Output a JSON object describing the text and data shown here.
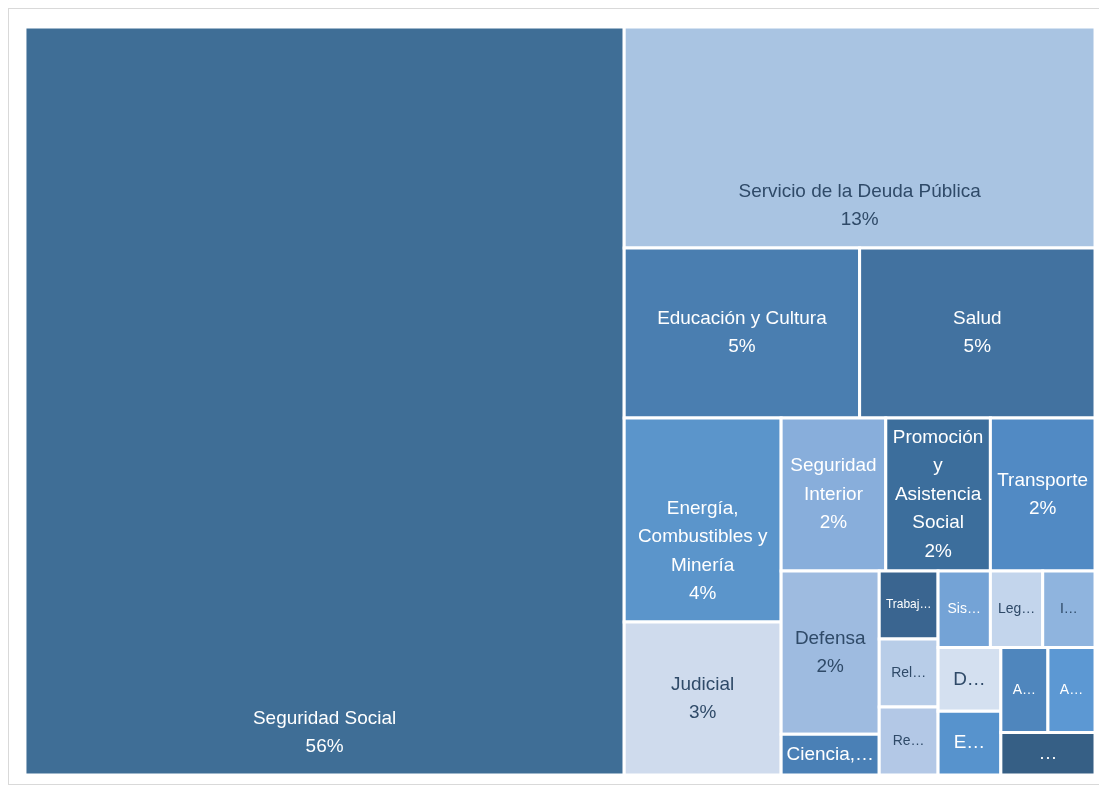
{
  "chart_data": {
    "type": "other",
    "categories": [
      "Seguridad Social",
      "Servicio de la Deuda Pública",
      "Educación y Cultura",
      "Salud",
      "Energía, Combustibles y Minería",
      "Judicial",
      "Seguridad Interior",
      "Promoción y Asistencia Social",
      "Transporte",
      "Defensa",
      "Ciencia,…",
      "Trabaj…",
      "Rel…",
      "Re…",
      "Sis…",
      "Leg…",
      "I…",
      "D…",
      "E…",
      "A…",
      "A…",
      "…"
    ],
    "values": [
      56,
      13,
      5,
      5,
      4,
      3,
      2,
      2,
      2,
      2,
      null,
      null,
      null,
      null,
      null,
      null,
      null,
      null,
      null,
      null,
      null,
      null
    ],
    "value_labels": [
      "56%",
      "13%",
      "5%",
      "5%",
      "4%",
      "3%",
      "2%",
      "2%",
      "2%",
      "2%",
      null,
      null,
      null,
      null,
      null,
      null,
      null,
      null,
      null,
      null,
      null,
      null
    ],
    "colors": [
      "#3f6e96",
      "#a9c4e2",
      "#4a7eb0",
      "#4272a0",
      "#5b95cb",
      "#cfdbed",
      "#88aedb",
      "#3c6e9c",
      "#518ac4",
      "#9ebbe0",
      "#4a80b6",
      "#3a6590",
      "#b8cde8",
      "#b3c8e6",
      "#74a3d6",
      "#c3d5ec",
      "#8fb4de",
      "#d4e0f0",
      "#5793cd",
      "#4f86bd",
      "#5c98d3",
      "#365f85"
    ]
  }
}
